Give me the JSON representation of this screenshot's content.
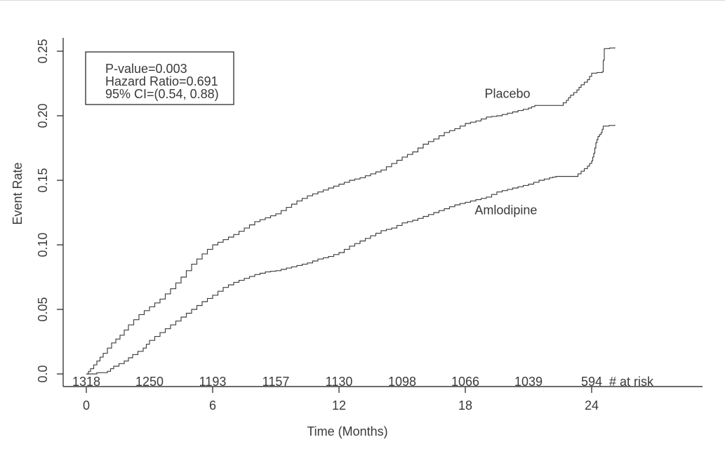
{
  "colors": {
    "background": "#ffffff",
    "text": "#3a3a3a",
    "curve": "#3f3f3f",
    "box_border": "#3a3a3a"
  },
  "chart_data": {
    "type": "line",
    "subtype": "kaplan-meier-cumulative-incidence-step",
    "title": "",
    "xlabel": "Time (Months)",
    "ylabel": "Event Rate",
    "xlim": [
      0,
      25.3
    ],
    "ylim": [
      0,
      0.26
    ],
    "grid": false,
    "legend_position": "curve-labels-inline",
    "x_ticks": [
      0,
      6,
      12,
      18,
      24
    ],
    "y_ticks": [
      {
        "value": 0.0,
        "label": "0.0"
      },
      {
        "value": 0.05,
        "label": "0.05"
      },
      {
        "value": 0.1,
        "label": "0.10"
      },
      {
        "value": 0.15,
        "label": "0.15"
      },
      {
        "value": 0.2,
        "label": "0.20"
      },
      {
        "value": 0.25,
        "label": "0.25"
      }
    ],
    "annotation": {
      "lines": [
        "P-value=0.003",
        "Hazard Ratio=0.691",
        "95% CI=(0.54, 0.88)"
      ]
    },
    "at_risk": {
      "label": "# at risk",
      "times": [
        0,
        3,
        6,
        9,
        12,
        15,
        18,
        21,
        24
      ],
      "values": [
        "1318",
        "1250",
        "1193",
        "1157",
        "1130",
        "1098",
        "1066",
        "1039",
        "594"
      ]
    },
    "series": [
      {
        "name": "Placebo",
        "label_pos": {
          "x": 20.0,
          "y": 0.217
        },
        "points": [
          [
            0,
            0.0
          ],
          [
            0.2,
            0.004
          ],
          [
            0.5,
            0.01
          ],
          [
            0.8,
            0.016
          ],
          [
            1.2,
            0.024
          ],
          [
            1.6,
            0.03
          ],
          [
            2.0,
            0.038
          ],
          [
            2.5,
            0.046
          ],
          [
            3.0,
            0.052
          ],
          [
            3.5,
            0.058
          ],
          [
            4.0,
            0.066
          ],
          [
            4.5,
            0.075
          ],
          [
            5.0,
            0.085
          ],
          [
            5.5,
            0.093
          ],
          [
            6.0,
            0.1
          ],
          [
            6.5,
            0.104
          ],
          [
            7.0,
            0.108
          ],
          [
            7.5,
            0.113
          ],
          [
            8.0,
            0.118
          ],
          [
            8.5,
            0.121
          ],
          [
            9.0,
            0.124
          ],
          [
            9.5,
            0.129
          ],
          [
            10.0,
            0.134
          ],
          [
            10.5,
            0.138
          ],
          [
            11.0,
            0.141
          ],
          [
            11.5,
            0.144
          ],
          [
            12.0,
            0.147
          ],
          [
            12.5,
            0.15
          ],
          [
            13.0,
            0.152
          ],
          [
            13.5,
            0.155
          ],
          [
            14.0,
            0.158
          ],
          [
            14.5,
            0.163
          ],
          [
            15.0,
            0.168
          ],
          [
            15.5,
            0.172
          ],
          [
            16.0,
            0.178
          ],
          [
            16.5,
            0.182
          ],
          [
            17.0,
            0.187
          ],
          [
            17.5,
            0.19
          ],
          [
            18.0,
            0.194
          ],
          [
            18.5,
            0.196
          ],
          [
            19.0,
            0.199
          ],
          [
            19.5,
            0.2
          ],
          [
            20.0,
            0.202
          ],
          [
            20.5,
            0.204
          ],
          [
            21.0,
            0.206
          ],
          [
            21.3,
            0.208
          ],
          [
            22.5,
            0.208
          ],
          [
            22.8,
            0.212
          ],
          [
            23.0,
            0.216
          ],
          [
            23.3,
            0.22
          ],
          [
            23.5,
            0.224
          ],
          [
            23.8,
            0.228
          ],
          [
            24.0,
            0.233
          ],
          [
            24.5,
            0.234
          ],
          [
            24.6,
            0.252
          ],
          [
            25.1,
            0.253
          ]
        ]
      },
      {
        "name": "Amlodipine",
        "label_pos": {
          "x": 19.93,
          "y": 0.127
        },
        "points": [
          [
            0,
            0.0
          ],
          [
            1.0,
            0.002
          ],
          [
            1.3,
            0.006
          ],
          [
            1.8,
            0.01
          ],
          [
            2.2,
            0.015
          ],
          [
            2.7,
            0.02
          ],
          [
            3.0,
            0.026
          ],
          [
            3.5,
            0.032
          ],
          [
            4.0,
            0.038
          ],
          [
            4.5,
            0.044
          ],
          [
            5.0,
            0.05
          ],
          [
            5.5,
            0.056
          ],
          [
            6.0,
            0.061
          ],
          [
            6.5,
            0.067
          ],
          [
            7.0,
            0.071
          ],
          [
            7.5,
            0.074
          ],
          [
            8.0,
            0.077
          ],
          [
            8.5,
            0.079
          ],
          [
            9.0,
            0.08
          ],
          [
            9.5,
            0.082
          ],
          [
            10.0,
            0.084
          ],
          [
            10.5,
            0.086
          ],
          [
            11.0,
            0.089
          ],
          [
            11.5,
            0.091
          ],
          [
            12.0,
            0.094
          ],
          [
            12.5,
            0.099
          ],
          [
            13.0,
            0.103
          ],
          [
            13.5,
            0.107
          ],
          [
            14.0,
            0.111
          ],
          [
            14.5,
            0.113
          ],
          [
            15.0,
            0.117
          ],
          [
            15.5,
            0.119
          ],
          [
            16.0,
            0.122
          ],
          [
            16.5,
            0.125
          ],
          [
            17.0,
            0.128
          ],
          [
            17.5,
            0.131
          ],
          [
            18.0,
            0.133
          ],
          [
            18.5,
            0.135
          ],
          [
            19.0,
            0.137
          ],
          [
            19.5,
            0.141
          ],
          [
            20.0,
            0.143
          ],
          [
            20.5,
            0.145
          ],
          [
            21.0,
            0.147
          ],
          [
            21.5,
            0.15
          ],
          [
            22.0,
            0.152
          ],
          [
            22.3,
            0.153
          ],
          [
            23.2,
            0.153
          ],
          [
            23.5,
            0.157
          ],
          [
            23.8,
            0.161
          ],
          [
            24.0,
            0.165
          ],
          [
            24.1,
            0.171
          ],
          [
            24.2,
            0.179
          ],
          [
            24.3,
            0.184
          ],
          [
            24.45,
            0.187
          ],
          [
            24.55,
            0.192
          ],
          [
            25.1,
            0.193
          ]
        ]
      }
    ]
  }
}
